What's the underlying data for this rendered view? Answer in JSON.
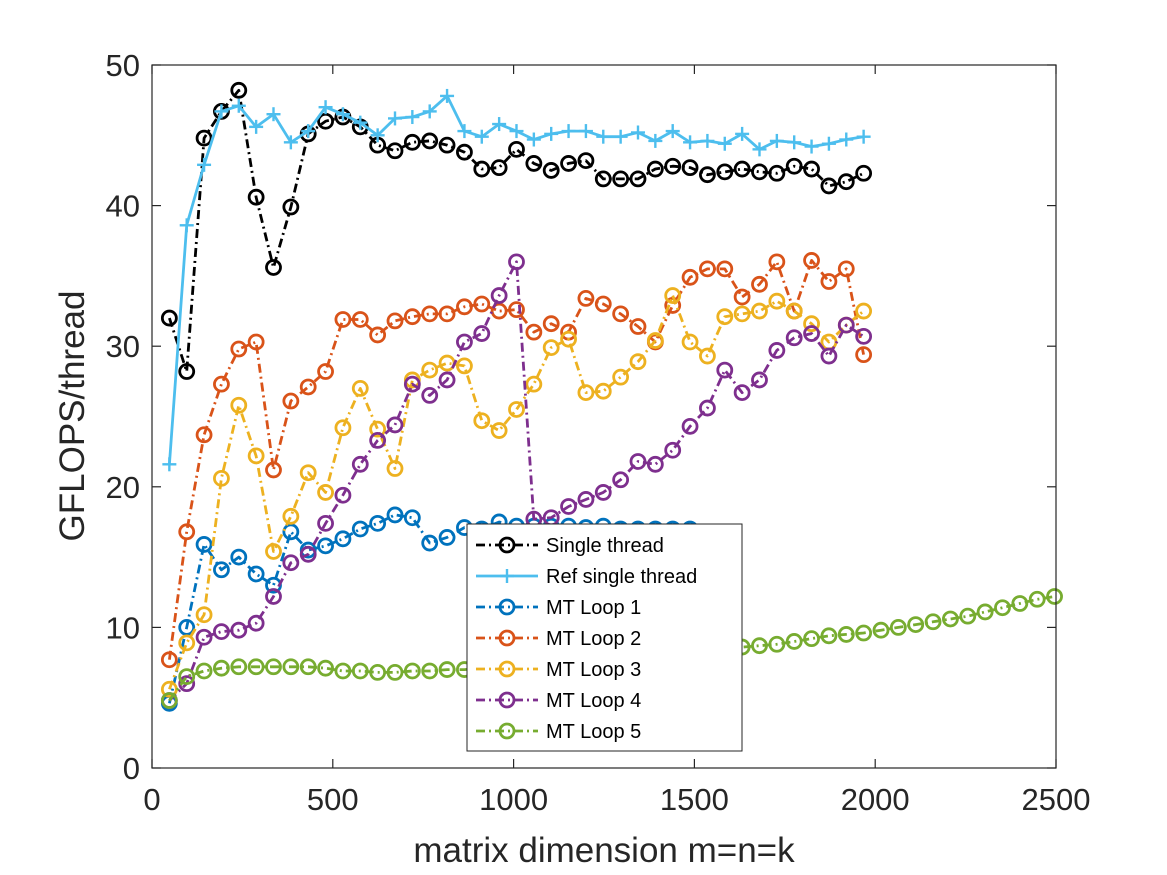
{
  "chart_data": {
    "type": "line",
    "title": "",
    "xlabel": "matrix dimension m=n=k",
    "ylabel": "GFLOPS/thread",
    "xlim": [
      0,
      2500
    ],
    "ylim": [
      0,
      50
    ],
    "xticks": [
      0,
      500,
      1000,
      1500,
      2000,
      2500
    ],
    "yticks": [
      0,
      10,
      20,
      30,
      40,
      50
    ],
    "grid": false,
    "legend_position": "lower-center",
    "series": [
      {
        "name": "Single thread",
        "color": "#000000",
        "line": "dash-dot",
        "marker": "circle",
        "x": [
          48,
          96,
          144,
          192,
          240,
          288,
          336,
          384,
          432,
          480,
          528,
          576,
          624,
          672,
          720,
          768,
          816,
          864,
          912,
          960,
          1008,
          1056,
          1104,
          1152,
          1200,
          1248,
          1296,
          1344,
          1392,
          1440,
          1488,
          1536,
          1584,
          1632,
          1680,
          1728,
          1776,
          1824,
          1872,
          1920,
          1968
        ],
        "y": [
          32.0,
          28.2,
          44.8,
          46.7,
          48.2,
          40.6,
          35.6,
          39.9,
          45.1,
          46.0,
          46.3,
          45.6,
          44.3,
          43.9,
          44.5,
          44.6,
          44.3,
          43.8,
          42.6,
          42.7,
          44.0,
          43.0,
          42.5,
          43.0,
          43.2,
          41.9,
          41.9,
          41.9,
          42.6,
          42.8,
          42.7,
          42.2,
          42.4,
          42.6,
          42.4,
          42.3,
          42.8,
          42.6,
          41.4,
          41.7,
          42.3
        ]
      },
      {
        "name": "Ref single thread",
        "color": "#4DBEEE",
        "line": "solid",
        "marker": "plus",
        "x": [
          48,
          96,
          144,
          192,
          240,
          288,
          336,
          384,
          432,
          480,
          528,
          576,
          624,
          672,
          720,
          768,
          816,
          864,
          912,
          960,
          1008,
          1056,
          1104,
          1152,
          1200,
          1248,
          1296,
          1344,
          1392,
          1440,
          1488,
          1536,
          1584,
          1632,
          1680,
          1728,
          1776,
          1824,
          1872,
          1920,
          1968
        ],
        "y": [
          21.6,
          38.6,
          42.9,
          46.7,
          47.1,
          45.6,
          46.5,
          44.5,
          45.3,
          47.0,
          46.5,
          45.9,
          45.0,
          46.2,
          46.3,
          46.7,
          47.8,
          45.3,
          44.9,
          45.8,
          45.3,
          44.7,
          45.1,
          45.3,
          45.3,
          44.9,
          44.9,
          45.2,
          44.6,
          45.3,
          44.5,
          44.6,
          44.4,
          45.1,
          44.0,
          44.6,
          44.5,
          44.2,
          44.4,
          44.7,
          44.9
        ]
      },
      {
        "name": "MT Loop 1",
        "color": "#0072BD",
        "line": "dash-dot",
        "marker": "circle",
        "x": [
          48,
          96,
          144,
          192,
          240,
          288,
          336,
          384,
          432,
          480,
          528,
          576,
          624,
          672,
          720,
          768,
          816,
          864,
          912,
          960,
          1008,
          1056,
          1104,
          1152,
          1200,
          1248,
          1296,
          1344,
          1392,
          1440,
          1488
        ],
        "y": [
          4.6,
          10.0,
          15.9,
          14.1,
          15.0,
          13.8,
          13.0,
          16.8,
          15.5,
          15.8,
          16.3,
          17.0,
          17.4,
          18.0,
          17.8,
          16.0,
          16.4,
          17.1,
          17.0,
          17.5,
          17.2,
          17.2,
          17.2,
          17.2,
          17.1,
          17.2,
          17.0,
          17.0,
          17.0,
          17.0,
          17.0
        ]
      },
      {
        "name": "MT Loop 2",
        "color": "#D95319",
        "line": "dash-dot",
        "marker": "circle",
        "x": [
          48,
          96,
          144,
          192,
          240,
          288,
          336,
          384,
          432,
          480,
          528,
          576,
          624,
          672,
          720,
          768,
          816,
          864,
          912,
          960,
          1008,
          1056,
          1104,
          1152,
          1200,
          1248,
          1296,
          1344,
          1392,
          1440,
          1488,
          1536,
          1584,
          1632,
          1680,
          1728,
          1776,
          1824,
          1872,
          1920,
          1968
        ],
        "y": [
          7.7,
          16.8,
          23.7,
          27.3,
          29.8,
          30.3,
          21.2,
          26.1,
          27.1,
          28.2,
          31.9,
          31.9,
          30.8,
          31.8,
          32.1,
          32.3,
          32.3,
          32.8,
          33.0,
          32.5,
          32.6,
          31.0,
          31.6,
          31.0,
          33.4,
          33.0,
          32.3,
          31.4,
          30.3,
          32.9,
          34.9,
          35.5,
          35.5,
          33.5,
          34.4,
          36.0,
          32.5,
          36.1,
          34.6,
          35.5,
          29.4
        ]
      },
      {
        "name": "MT Loop 3",
        "color": "#EDB120",
        "line": "dash-dot",
        "marker": "circle",
        "x": [
          48,
          96,
          144,
          192,
          240,
          288,
          336,
          384,
          432,
          480,
          528,
          576,
          624,
          672,
          720,
          768,
          816,
          864,
          912,
          960,
          1008,
          1056,
          1104,
          1152,
          1200,
          1248,
          1296,
          1344,
          1392,
          1440,
          1488,
          1536,
          1584,
          1632,
          1680,
          1728,
          1776,
          1824,
          1872,
          1920,
          1968
        ],
        "y": [
          5.6,
          8.9,
          10.9,
          20.6,
          25.8,
          22.2,
          15.4,
          17.9,
          21.0,
          19.6,
          24.2,
          27.0,
          24.1,
          21.3,
          27.6,
          28.3,
          28.8,
          28.6,
          24.7,
          24.0,
          25.5,
          27.3,
          29.9,
          30.5,
          26.7,
          26.8,
          27.8,
          28.9,
          30.4,
          33.6,
          30.3,
          29.3,
          32.1,
          32.3,
          32.5,
          33.2,
          32.5,
          31.6,
          30.3,
          31.5,
          32.5
        ]
      },
      {
        "name": "MT Loop 4",
        "color": "#7E2F8E",
        "line": "dash-dot",
        "marker": "circle",
        "x": [
          48,
          96,
          144,
          192,
          240,
          288,
          336,
          384,
          432,
          480,
          528,
          576,
          624,
          672,
          720,
          768,
          816,
          864,
          912,
          960,
          1008,
          1056,
          1104,
          1152,
          1200,
          1248,
          1296,
          1344,
          1392,
          1440,
          1488,
          1536,
          1584,
          1632,
          1680,
          1728,
          1776,
          1824,
          1872,
          1920,
          1968
        ],
        "y": [
          4.8,
          6.0,
          9.3,
          9.7,
          9.8,
          10.3,
          12.2,
          14.6,
          15.2,
          17.4,
          19.4,
          21.6,
          23.3,
          24.4,
          27.3,
          26.5,
          27.6,
          30.3,
          30.9,
          33.6,
          36.0,
          17.7,
          17.8,
          18.6,
          19.1,
          19.6,
          20.5,
          21.8,
          21.6,
          22.6,
          24.3,
          25.6,
          28.3,
          26.7,
          27.6,
          29.7,
          30.6,
          30.9,
          29.3,
          31.5,
          30.7
        ]
      },
      {
        "name": "MT Loop 5",
        "color": "#77AC30",
        "line": "dash-dot",
        "marker": "circle",
        "x": [
          48,
          96,
          144,
          192,
          240,
          288,
          336,
          384,
          432,
          480,
          528,
          576,
          624,
          672,
          720,
          768,
          816,
          864,
          912,
          960,
          1008,
          1056,
          1104,
          1152,
          1200,
          1248,
          1296,
          1344,
          1392,
          1440,
          1488,
          1536,
          1584,
          1632,
          1680,
          1728,
          1776,
          1824,
          1872,
          1920,
          1968,
          2016,
          2064,
          2112,
          2160,
          2208,
          2256,
          2304,
          2352,
          2400,
          2448,
          2496
        ],
        "y": [
          4.8,
          6.5,
          6.9,
          7.1,
          7.2,
          7.2,
          7.2,
          7.2,
          7.2,
          7.1,
          6.9,
          6.9,
          6.8,
          6.8,
          6.9,
          6.9,
          7.0,
          7.0,
          7.1,
          7.2,
          7.3,
          7.4,
          7.5,
          7.6,
          7.7,
          7.8,
          7.9,
          8.0,
          8.1,
          8.2,
          8.3,
          8.4,
          8.5,
          8.6,
          8.7,
          8.8,
          9.0,
          9.2,
          9.4,
          9.5,
          9.6,
          9.8,
          10.0,
          10.2,
          10.4,
          10.6,
          10.8,
          11.1,
          11.4,
          11.7,
          12.0,
          12.2
        ]
      }
    ]
  }
}
